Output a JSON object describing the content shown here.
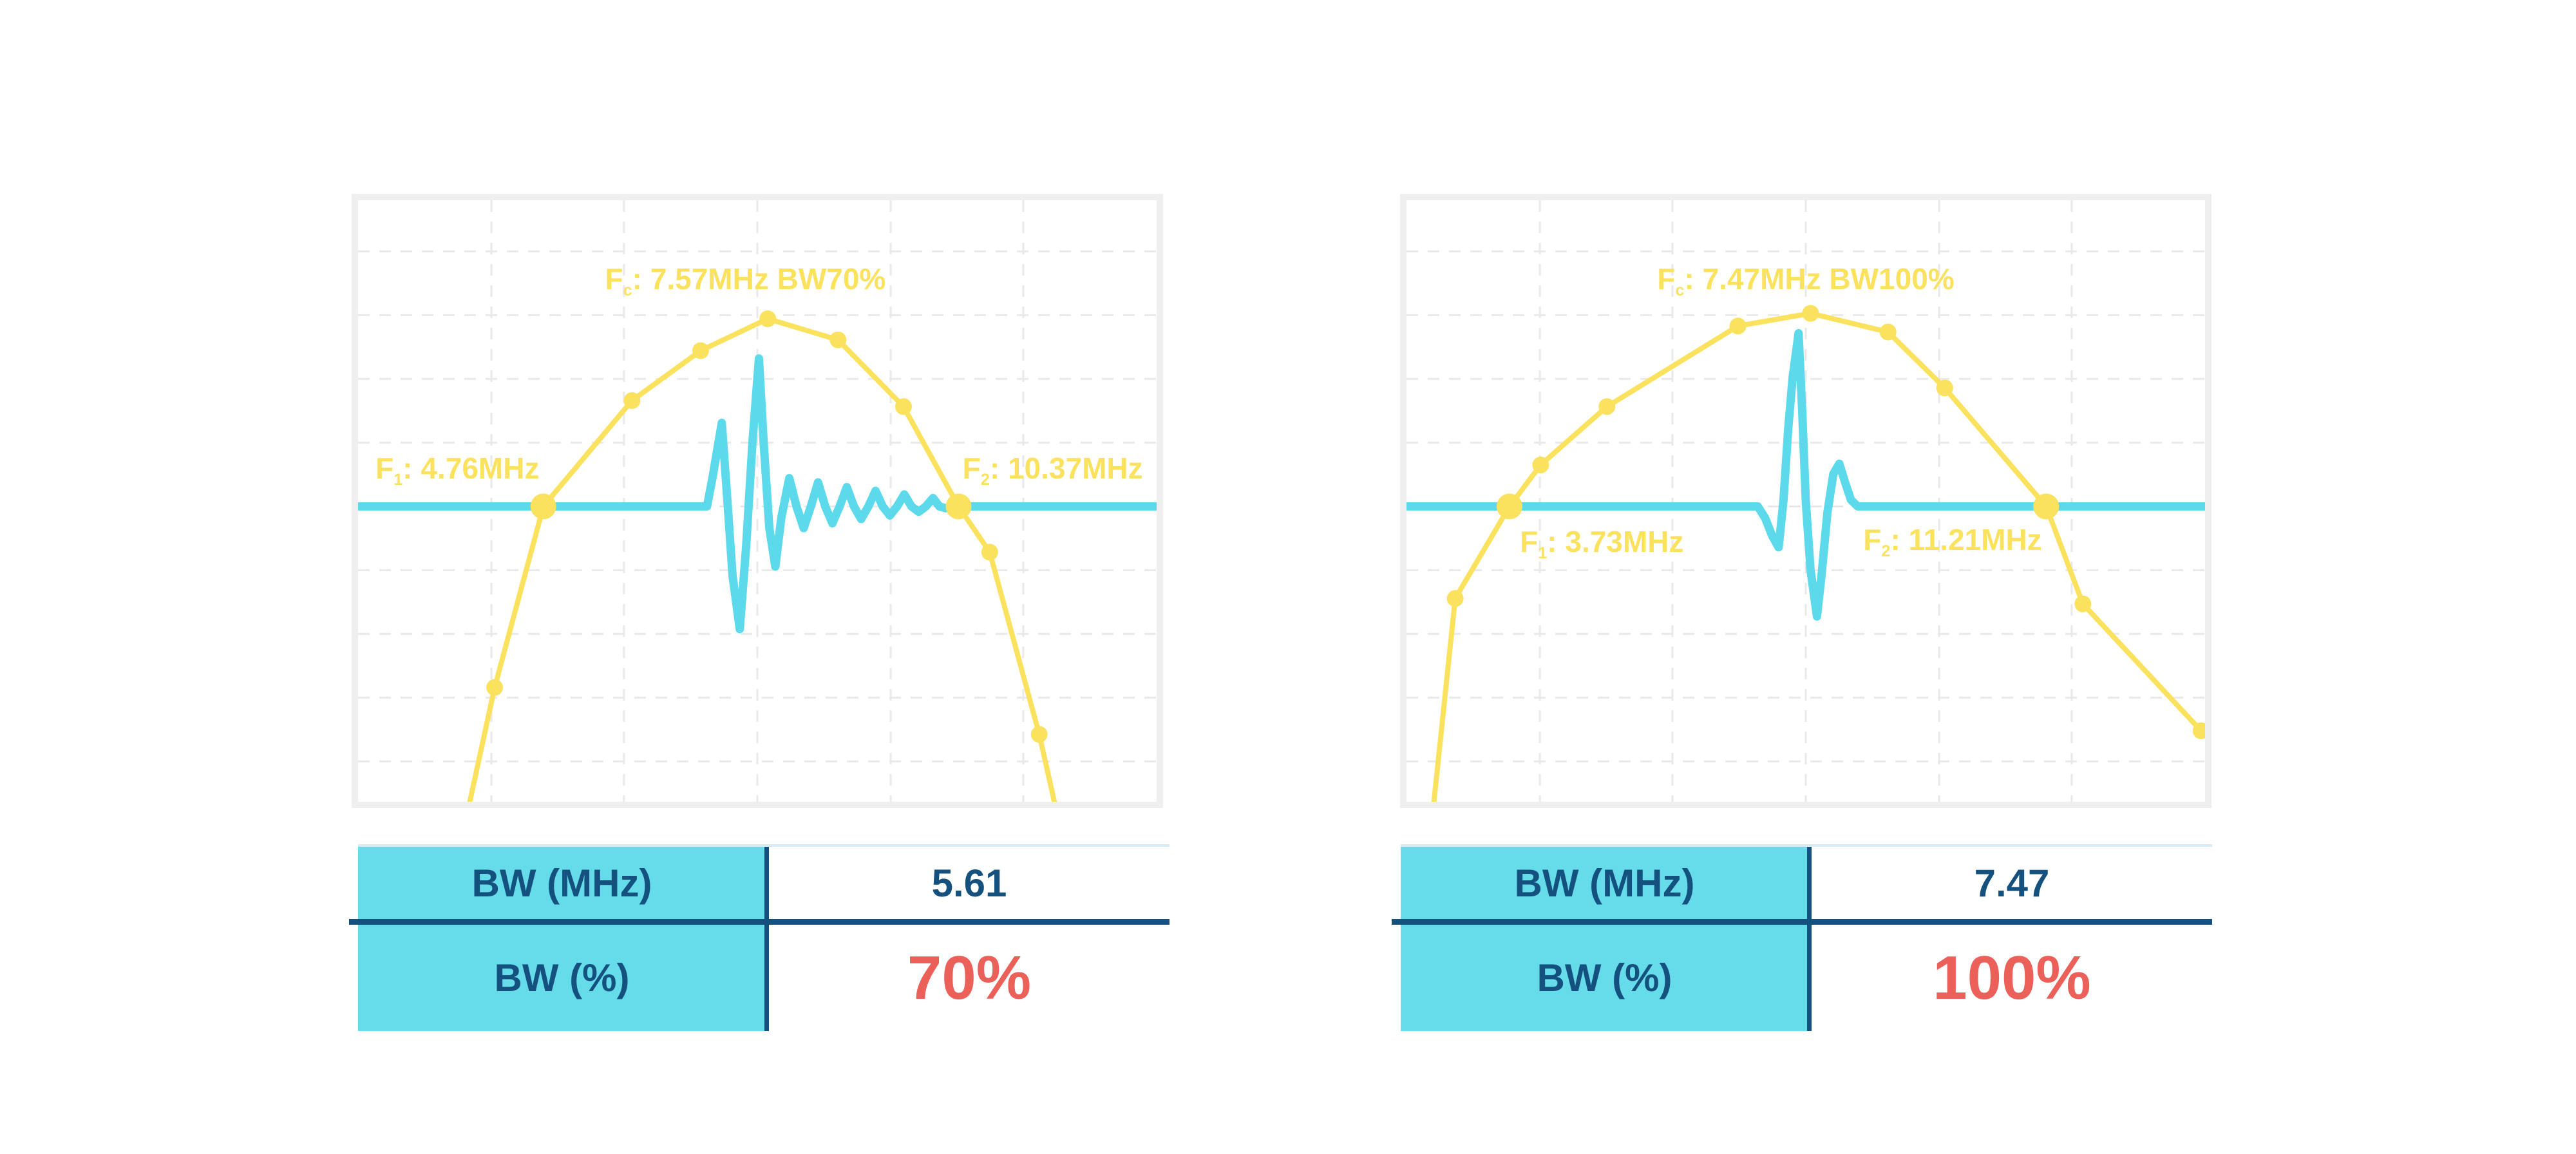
{
  "theme": {
    "background": "#FFFFFF",
    "yellow": "#FBE25E",
    "cyan": "#5DD9EC",
    "navy": "#14517E",
    "red": "#EB6058",
    "grid_color": "#E9E9E9",
    "chart_border": "#EFEFEF",
    "table_header_bg": "#66DBEA",
    "table_top_line": "#D6EBF4"
  },
  "chart_data": [
    {
      "type": "line",
      "name": "pulse-spectrum-bw70",
      "fc_mhz": 7.57,
      "f1_mhz": 4.76,
      "f2_mhz": 10.37,
      "bw_mhz": 5.61,
      "bw_percent": 70,
      "grid": {
        "vlines": [
          0.167,
          0.333,
          0.5,
          0.667,
          0.833
        ],
        "hlines": [
          0.085,
          0.191,
          0.297,
          0.403,
          0.509,
          0.615,
          0.721,
          0.827,
          0.933
        ]
      },
      "series": [
        {
          "name": "spectrum",
          "color_key": "yellow",
          "points": [
            {
              "x": 0.135,
              "y": 1.03,
              "marker": "none"
            },
            {
              "x": 0.171,
              "y": 0.81,
              "marker": "dot"
            },
            {
              "x": 0.232,
              "y": 0.509,
              "marker": "big"
            },
            {
              "x": 0.343,
              "y": 0.333,
              "marker": "dot"
            },
            {
              "x": 0.429,
              "y": 0.25,
              "marker": "dot"
            },
            {
              "x": 0.513,
              "y": 0.197,
              "marker": "dot"
            },
            {
              "x": 0.601,
              "y": 0.232,
              "marker": "dot"
            },
            {
              "x": 0.683,
              "y": 0.343,
              "marker": "dot"
            },
            {
              "x": 0.752,
              "y": 0.509,
              "marker": "big"
            },
            {
              "x": 0.791,
              "y": 0.585,
              "marker": "dot"
            },
            {
              "x": 0.853,
              "y": 0.888,
              "marker": "dot"
            },
            {
              "x": 0.877,
              "y": 1.03,
              "marker": "none"
            }
          ]
        },
        {
          "name": "pulse-echo",
          "color_key": "cyan",
          "points": [
            [
              0,
              0.509
            ],
            [
              0.437,
              0.509
            ],
            [
              0.444,
              0.46
            ],
            [
              0.4555,
              0.37
            ],
            [
              0.462,
              0.49
            ],
            [
              0.469,
              0.625
            ],
            [
              0.478,
              0.713
            ],
            [
              0.486,
              0.575
            ],
            [
              0.494,
              0.4
            ],
            [
              0.502,
              0.263
            ],
            [
              0.508,
              0.405
            ],
            [
              0.515,
              0.545
            ],
            [
              0.5225,
              0.609
            ],
            [
              0.53,
              0.528
            ],
            [
              0.54,
              0.462
            ],
            [
              0.549,
              0.509
            ],
            [
              0.558,
              0.545
            ],
            [
              0.567,
              0.509
            ],
            [
              0.576,
              0.469
            ],
            [
              0.585,
              0.509
            ],
            [
              0.594,
              0.537
            ],
            [
              0.603,
              0.509
            ],
            [
              0.612,
              0.477
            ],
            [
              0.621,
              0.509
            ],
            [
              0.63,
              0.53
            ],
            [
              0.639,
              0.509
            ],
            [
              0.648,
              0.483
            ],
            [
              0.657,
              0.509
            ],
            [
              0.666,
              0.524
            ],
            [
              0.675,
              0.509
            ],
            [
              0.684,
              0.489
            ],
            [
              0.693,
              0.509
            ],
            [
              0.702,
              0.518
            ],
            [
              0.711,
              0.509
            ],
            [
              0.72,
              0.495
            ],
            [
              0.728,
              0.509
            ],
            [
              0.736,
              0.512
            ],
            [
              0.745,
              0.509
            ],
            [
              1,
              0.509
            ]
          ]
        }
      ],
      "annotations": {
        "fc": {
          "base": "F",
          "sub": "c",
          "rest": ": 7.57MHz BW70%",
          "x": 0.485,
          "y": 0.135,
          "anchor": "center"
        },
        "f1": {
          "base": "F",
          "sub": "1",
          "rest": ": 4.76MHz",
          "x": 0.227,
          "y": 0.45,
          "anchor": "right"
        },
        "f2": {
          "base": "F",
          "sub": "2",
          "rest": ": 10.37MHz",
          "x": 0.757,
          "y": 0.45,
          "anchor": "left"
        }
      },
      "table": {
        "rows": [
          {
            "label": "BW (MHz)",
            "value": "5.61",
            "highlight": false
          },
          {
            "label": "BW (%)",
            "value": "70%",
            "highlight": true
          }
        ]
      }
    },
    {
      "type": "line",
      "name": "pulse-spectrum-bw100",
      "fc_mhz": 7.47,
      "f1_mhz": 3.73,
      "f2_mhz": 11.21,
      "bw_mhz": 7.47,
      "bw_percent": 100,
      "grid": {
        "vlines": [
          0.167,
          0.333,
          0.5,
          0.667,
          0.833
        ],
        "hlines": [
          0.085,
          0.191,
          0.297,
          0.403,
          0.509,
          0.615,
          0.721,
          0.827,
          0.933
        ]
      },
      "series": [
        {
          "name": "spectrum",
          "color_key": "yellow",
          "points": [
            {
              "x": 0.032,
              "y": 1.03,
              "marker": "none"
            },
            {
              "x": 0.061,
              "y": 0.662,
              "marker": "dot"
            },
            {
              "x": 0.129,
              "y": 0.509,
              "marker": "big"
            },
            {
              "x": 0.168,
              "y": 0.44,
              "marker": "dot"
            },
            {
              "x": 0.251,
              "y": 0.343,
              "marker": "dot"
            },
            {
              "x": 0.415,
              "y": 0.209,
              "marker": "dot"
            },
            {
              "x": 0.506,
              "y": 0.188,
              "marker": "dot"
            },
            {
              "x": 0.603,
              "y": 0.219,
              "marker": "dot"
            },
            {
              "x": 0.674,
              "y": 0.312,
              "marker": "dot"
            },
            {
              "x": 0.801,
              "y": 0.509,
              "marker": "big"
            },
            {
              "x": 0.847,
              "y": 0.671,
              "marker": "dot"
            },
            {
              "x": 0.995,
              "y": 0.882,
              "marker": "dot"
            }
          ]
        },
        {
          "name": "pulse-echo",
          "color_key": "cyan",
          "points": [
            [
              0,
              0.509
            ],
            [
              0.44,
              0.509
            ],
            [
              0.449,
              0.528
            ],
            [
              0.458,
              0.558
            ],
            [
              0.466,
              0.577
            ],
            [
              0.472,
              0.5
            ],
            [
              0.478,
              0.38
            ],
            [
              0.4835,
              0.295
            ],
            [
              0.491,
              0.221
            ],
            [
              0.4955,
              0.35
            ],
            [
              0.5,
              0.5
            ],
            [
              0.506,
              0.615
            ],
            [
              0.514,
              0.692
            ],
            [
              0.52,
              0.62
            ],
            [
              0.527,
              0.52
            ],
            [
              0.5345,
              0.455
            ],
            [
              0.542,
              0.438
            ],
            [
              0.549,
              0.468
            ],
            [
              0.5565,
              0.498
            ],
            [
              0.565,
              0.509
            ],
            [
              1,
              0.509
            ]
          ]
        }
      ],
      "annotations": {
        "fc": {
          "base": "F",
          "sub": "c",
          "rest": ": 7.47MHz BW100%",
          "x": 0.5,
          "y": 0.135,
          "anchor": "center"
        },
        "f1": {
          "base": "F",
          "sub": "1",
          "rest": ": 3.73MHz",
          "x": 0.142,
          "y": 0.572,
          "anchor": "left"
        },
        "f2": {
          "base": "F",
          "sub": "2",
          "rest": ": 11.21MHz",
          "x": 0.572,
          "y": 0.568,
          "anchor": "left"
        }
      },
      "table": {
        "rows": [
          {
            "label": "BW (MHz)",
            "value": "7.47",
            "highlight": false
          },
          {
            "label": "BW (%)",
            "value": "100%",
            "highlight": true
          }
        ]
      }
    }
  ]
}
